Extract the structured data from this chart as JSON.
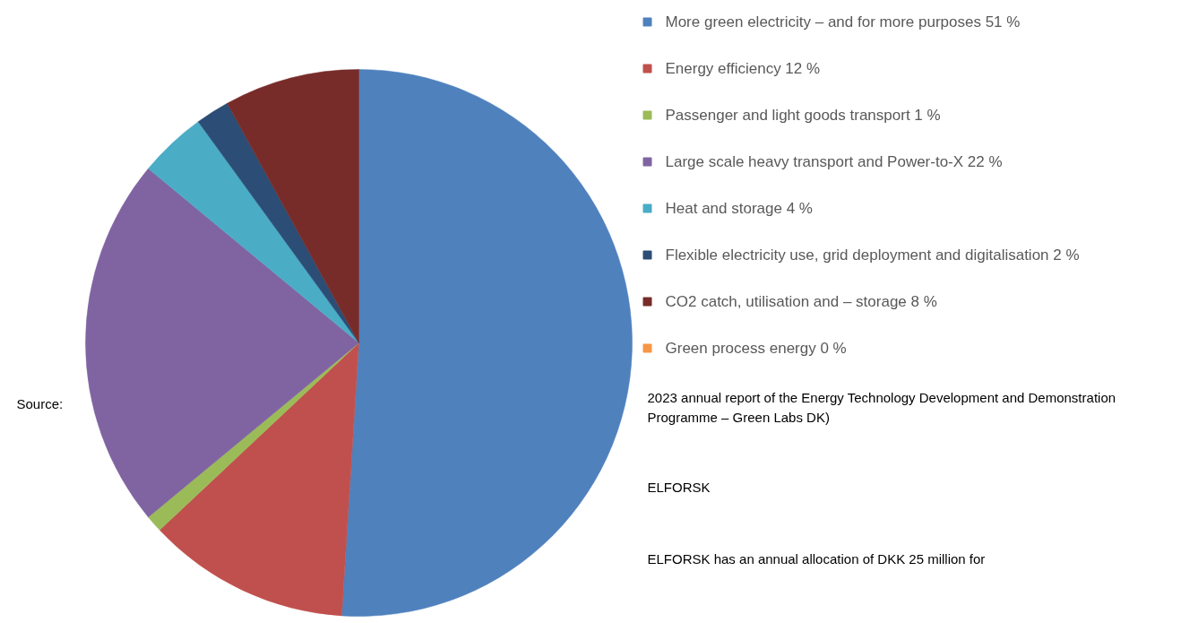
{
  "chart_data": {
    "type": "pie",
    "categories": [
      "More green electricity – and for more purposes",
      "Energy efficiency",
      "Passenger and light goods transport",
      "Large scale heavy transport and Power-to-X",
      "Heat and storage",
      "Flexible electricity use, grid deployment and digitalisation",
      "CO2 catch, utilisation and – storage",
      "Green process energy"
    ],
    "values": [
      51,
      12,
      1,
      22,
      4,
      2,
      8,
      0
    ],
    "value_labels": [
      "51 %",
      "12 %",
      "1 %",
      "22 %",
      "4 %",
      "2 %",
      "8 %",
      "0 %"
    ],
    "colors": [
      "#4f81bd",
      "#c0504d",
      "#9bbb59",
      "#8064a2",
      "#4bacc6",
      "#2c4d75",
      "#772c2a",
      "#f79646"
    ],
    "legend": "right",
    "annotations": [
      "Source:",
      "2023 annual report of the Energy Technology Development and Demonstration Programme – Green Labs DK)",
      "ELFORSK",
      "ELFORSK has an annual allocation of DKK 25 million for"
    ]
  }
}
